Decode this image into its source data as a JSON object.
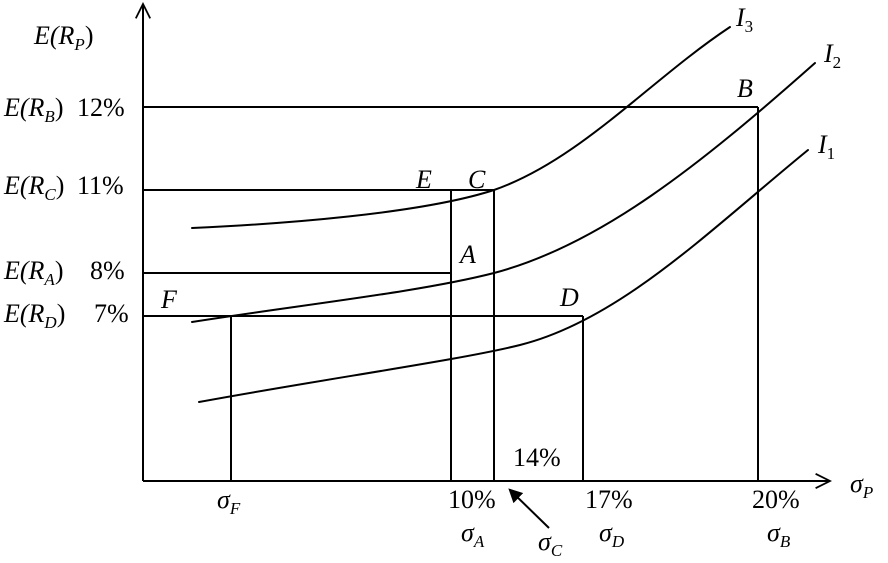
{
  "axes": {
    "y_label": {
      "main": "E(R",
      "sub": "P",
      "close": ")"
    },
    "x_label": {
      "main": "σ",
      "sub": "P"
    }
  },
  "y_labels": {
    "b": {
      "main": "E(R",
      "sub": "B",
      "close": ")",
      "value": "12%"
    },
    "c": {
      "main": "E(R",
      "sub": "C",
      "close": ")",
      "value": "11%"
    },
    "a": {
      "main": "E(R",
      "sub": "A",
      "close": ")",
      "value": "8%"
    },
    "d": {
      "main": "E(R",
      "sub": "D",
      "close": ")",
      "value": "7%"
    }
  },
  "x_labels": {
    "f": {
      "main": "σ",
      "sub": "F"
    },
    "a": {
      "value": "10%",
      "main": "σ",
      "sub": "A"
    },
    "c": {
      "main": "σ",
      "sub": "C"
    },
    "d": {
      "value": "17%",
      "main": "σ",
      "sub": "D"
    },
    "b": {
      "value": "20%",
      "main": "σ",
      "sub": "B"
    },
    "mid": {
      "value": "14%"
    }
  },
  "points": {
    "b": "B",
    "c": "C",
    "e": "E",
    "a": "A",
    "f": "F",
    "d": "D"
  },
  "curves": {
    "i3": {
      "main": "I",
      "sub": "3"
    },
    "i2": {
      "main": "I",
      "sub": "2"
    },
    "i1": {
      "main": "I",
      "sub": "1"
    }
  }
}
